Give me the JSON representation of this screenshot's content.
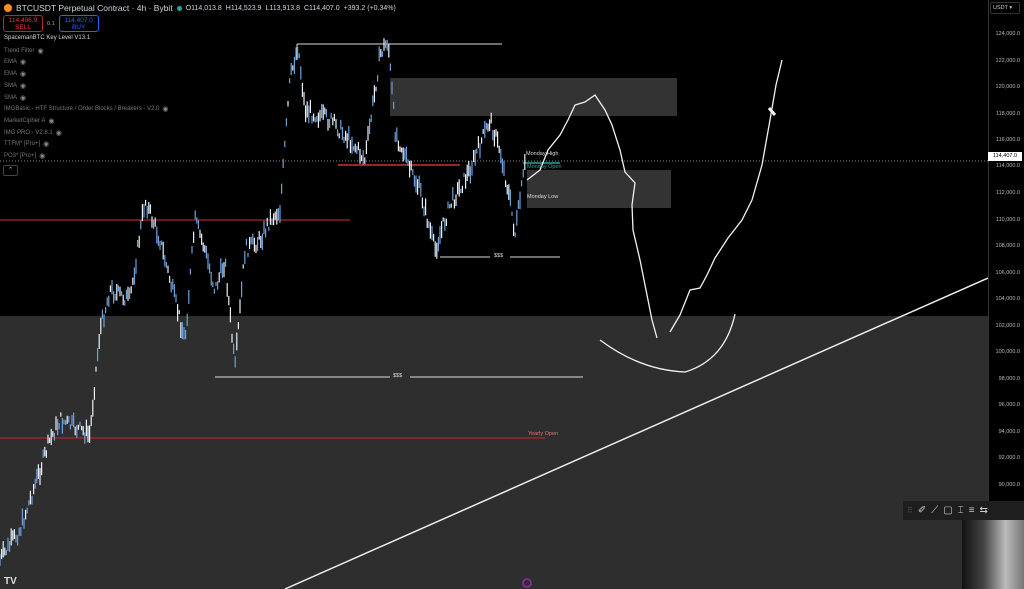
{
  "header": {
    "symbol": "BTCUSDT Perpetual Contract · 4h · Bybit",
    "open": "O114,013.8",
    "high": "H114,523.9",
    "low": "L113,913.8",
    "close": "C114,407.0",
    "change": "+393.2 (+0.34%)"
  },
  "trade": {
    "sell_price": "114,406.9",
    "sell_label": "SELL",
    "qty": "0.1",
    "buy_price": "114,407.0",
    "buy_label": "BUY"
  },
  "indicators": [
    {
      "name": "SpacemanBTC Key Level V13.1"
    },
    {
      "name": "Trend Filter"
    },
    {
      "name": "EMA"
    },
    {
      "name": "EMA"
    },
    {
      "name": "SMA"
    },
    {
      "name": "SMA"
    },
    {
      "name": "IMGBasic - HTF Structure / Order Blocks / Breakers - V2.0"
    },
    {
      "name": "MarketCipher A"
    },
    {
      "name": "IMG PRO - V2.8.1"
    },
    {
      "name": "TTFM* [Pro+]"
    },
    {
      "name": "PO3* [Pro+]"
    }
  ],
  "axis": {
    "unit": "USDT",
    "ticks": [
      "124,000.0",
      "122,000.0",
      "120,000.0",
      "118,000.0",
      "116,000.0",
      "114,000.0",
      "112,000.0",
      "110,000.0",
      "108,000.0",
      "106,000.0",
      "104,000.0",
      "102,000.0",
      "100,000.0",
      "98,000.0",
      "96,000.0",
      "94,000.0",
      "92,000.0",
      "90,000.0"
    ],
    "current_price": "114,407.0"
  },
  "labels": {
    "monday_high": "Monday High",
    "monday_open": "Monday Open",
    "monday_low": "Monday Low",
    "liq_top": "$$$",
    "liq_bottom": "$$$",
    "yearly_open": "Yearly Open"
  },
  "colors": {
    "background": "#000000",
    "candles": "#b8d4f0",
    "key_level_red": "#d32f2f",
    "zone_gray": "#333333",
    "accent_green": "#26a69a"
  },
  "toolbar": {
    "icons": [
      "drag-handle-icon",
      "brush-icon",
      "line-icon",
      "rectangle-icon",
      "text-icon",
      "align-icon",
      "settings-icon"
    ]
  },
  "logo": "TV"
}
